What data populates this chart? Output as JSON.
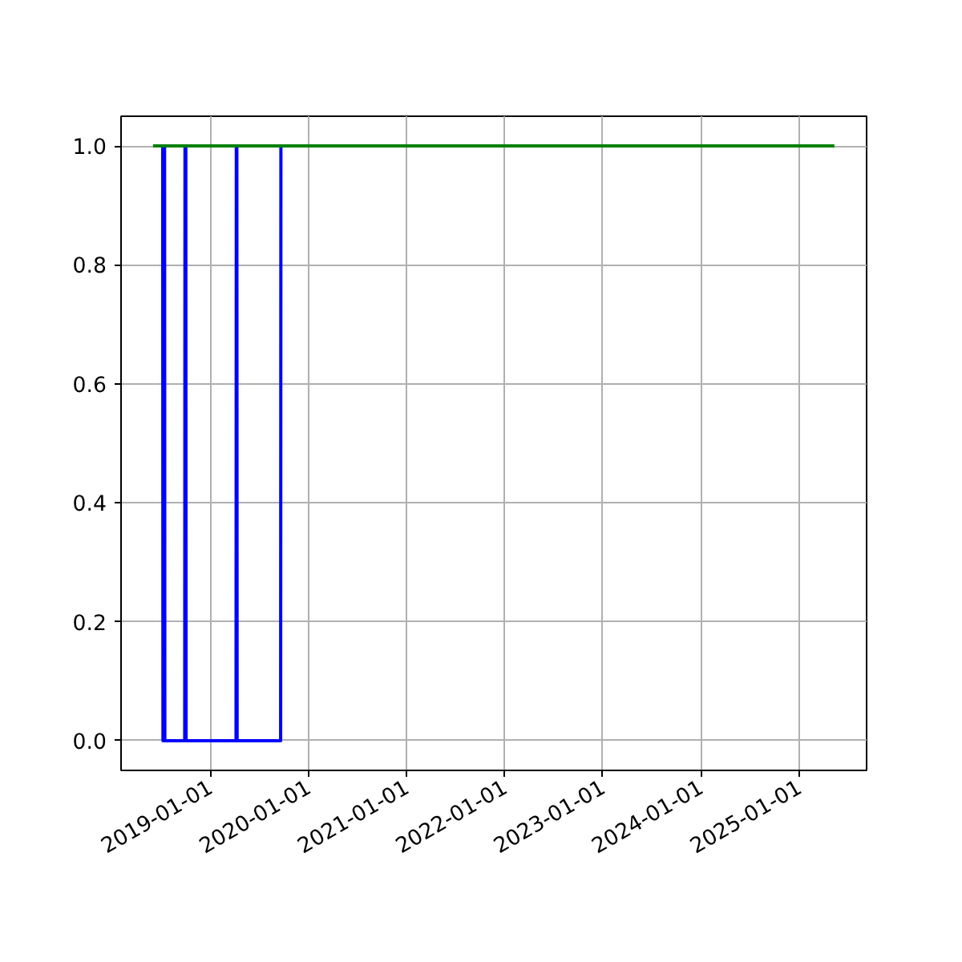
{
  "chart_data": {
    "type": "line",
    "xlim": [
      "2018-02-03",
      "2025-09-09"
    ],
    "ylim": [
      -0.05,
      1.05
    ],
    "xticks": [
      "2019-01-01",
      "2020-01-01",
      "2021-01-01",
      "2022-01-01",
      "2023-01-01",
      "2024-01-01",
      "2025-01-01"
    ],
    "yticks": [
      {
        "value": 0,
        "label": "0.0"
      },
      {
        "value": 0.2,
        "label": "0.2"
      },
      {
        "value": 0.4,
        "label": "0.4"
      },
      {
        "value": 0.6,
        "label": "0.6"
      },
      {
        "value": 0.8,
        "label": "0.8"
      },
      {
        "value": 1,
        "label": "1.0"
      }
    ],
    "grid": true,
    "marker": "none",
    "line_style": "solid",
    "series": [
      {
        "color": "#0000ff",
        "x": [
          "2018-07-08",
          "2018-07-09",
          "2018-07-12",
          "2018-07-13",
          "2018-07-15",
          "2018-07-16",
          "2018-09-28",
          "2018-09-29",
          "2018-10-02",
          "2018-10-03",
          "2019-04-07",
          "2019-04-08",
          "2019-04-10",
          "2019-04-11",
          "2019-09-20",
          "2019-09-21"
        ],
        "values": [
          1,
          0,
          0,
          1,
          1,
          0,
          0,
          1,
          1,
          0,
          0,
          1,
          1,
          0,
          0,
          1
        ]
      },
      {
        "color": "#008000",
        "x": [
          "2018-06-02",
          "2025-05-12"
        ],
        "values": [
          1,
          1
        ]
      }
    ]
  }
}
